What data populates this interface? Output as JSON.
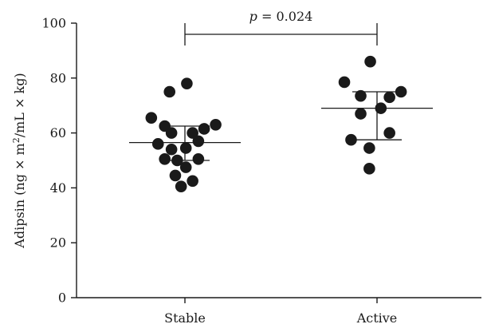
{
  "chart_data": {
    "type": "scatter",
    "title": "",
    "xlabel": "",
    "ylabel_parts": {
      "prefix": "Adipsin (ng × m",
      "sup": "2",
      "suffix": "/mL × kg)"
    },
    "categories": [
      "Stable",
      "Active"
    ],
    "ylim": [
      0,
      100
    ],
    "yticks": [
      "0",
      "20",
      "40",
      "60",
      "80",
      "100"
    ],
    "grid": false,
    "legend": "none",
    "series": [
      {
        "category": "Stable",
        "mean": 56.5,
        "sd_lower": 50.0,
        "sd_upper": 62.5,
        "points": [
          {
            "offset": -0.35,
            "y": 65.5
          },
          {
            "offset": -0.28,
            "y": 56.0
          },
          {
            "offset": -0.21,
            "y": 62.5
          },
          {
            "offset": -0.21,
            "y": 50.5
          },
          {
            "offset": -0.16,
            "y": 75.0
          },
          {
            "offset": -0.14,
            "y": 54.0
          },
          {
            "offset": -0.14,
            "y": 60.0
          },
          {
            "offset": -0.1,
            "y": 44.5
          },
          {
            "offset": -0.08,
            "y": 50.0
          },
          {
            "offset": -0.04,
            "y": 40.5
          },
          {
            "offset": 0.02,
            "y": 78.0
          },
          {
            "offset": 0.01,
            "y": 54.5
          },
          {
            "offset": 0.01,
            "y": 47.5
          },
          {
            "offset": 0.08,
            "y": 42.5
          },
          {
            "offset": 0.08,
            "y": 60.0
          },
          {
            "offset": 0.14,
            "y": 57.0
          },
          {
            "offset": 0.14,
            "y": 50.5
          },
          {
            "offset": 0.2,
            "y": 61.5
          },
          {
            "offset": 0.32,
            "y": 63.0
          }
        ]
      },
      {
        "category": "Active",
        "mean": 69.0,
        "sd_lower": 57.5,
        "sd_upper": 75.0,
        "points": [
          {
            "offset": -0.34,
            "y": 78.5
          },
          {
            "offset": -0.27,
            "y": 57.5
          },
          {
            "offset": -0.17,
            "y": 73.5
          },
          {
            "offset": -0.17,
            "y": 67.0
          },
          {
            "offset": -0.08,
            "y": 54.5
          },
          {
            "offset": -0.08,
            "y": 47.0
          },
          {
            "offset": -0.07,
            "y": 86.0
          },
          {
            "offset": 0.04,
            "y": 69.0
          },
          {
            "offset": 0.13,
            "y": 73.0
          },
          {
            "offset": 0.13,
            "y": 60.0
          },
          {
            "offset": 0.25,
            "y": 75.0
          }
        ]
      }
    ],
    "annotation": {
      "p_symbol": "p",
      "p_text": " = 0.024",
      "from": "Stable",
      "to": "Active"
    }
  }
}
